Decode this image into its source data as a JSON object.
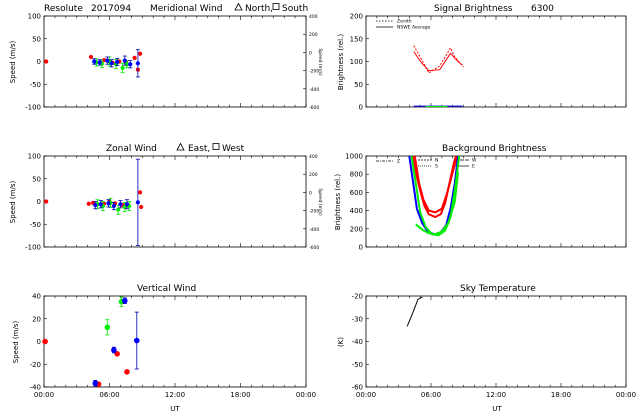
{
  "colors": {
    "red": "#ff0000",
    "green": "#00ee00",
    "blue": "#0000ff",
    "dark_blue": "#0000aa",
    "black": "#000000"
  },
  "panels": {
    "meridional": {
      "title": {
        "site": "Resolute",
        "date": "2017094",
        "name": "Meridional Wind",
        "dir_a": "North,",
        "dir_b": "South"
      },
      "ylabel": "Speed (m/s)",
      "ylabel_right": "Speed (m/s)",
      "yticks": [
        "100",
        "50",
        "0",
        "-50",
        "-100"
      ],
      "yticks_right": [
        "400",
        "200",
        "0",
        "-200",
        "-400",
        "-600"
      ]
    },
    "signal": {
      "title": {
        "name": "Signal Brightness",
        "wavelength": "6300"
      },
      "ylabel": "Brightness (rel.)",
      "yticks": [
        "200",
        "150",
        "100",
        "50",
        "0"
      ],
      "legend": [
        "Zenith",
        "NSWE Average"
      ]
    },
    "zonal": {
      "title": {
        "name": "Zonal Wind",
        "dir_a": "East,",
        "dir_b": "West"
      },
      "ylabel": "Speed (m/s)",
      "ylabel_right": "Speed (m/s)",
      "yticks": [
        "100",
        "50",
        "0",
        "-50",
        "-100"
      ],
      "yticks_right": [
        "400",
        "200",
        "0",
        "-200",
        "-400",
        "-600"
      ]
    },
    "background": {
      "title": {
        "name": "Background Brightness"
      },
      "ylabel": "Brightness (rel.)",
      "yticks": [
        "1000",
        "800",
        "600",
        "400",
        "200",
        "0"
      ],
      "legend": [
        "Z",
        "N",
        "S",
        "W",
        "E"
      ]
    },
    "vertical": {
      "title": {
        "name": "Vertical Wind"
      },
      "ylabel": "Speed (m/s)",
      "yticks": [
        "40",
        "20",
        "0",
        "-20",
        "-40"
      ],
      "xticks": [
        "00:00",
        "06:00",
        "12:00",
        "18:00",
        "00:00"
      ],
      "xlabel": "UT"
    },
    "sky": {
      "title": {
        "name": "Sky Temperature"
      },
      "ylabel": "(K)",
      "yticks": [
        "-20",
        "-30",
        "-40",
        "-50",
        "-60"
      ],
      "xticks": [
        "00:00",
        "06:00",
        "12:00",
        "18:00",
        "00:00"
      ],
      "xlabel": "UT"
    }
  },
  "chart_data": [
    {
      "id": "meridional",
      "type": "scatter",
      "xlim": [
        0,
        24
      ],
      "ylim": [
        -100,
        100
      ],
      "ylim_right": [
        -600,
        400
      ],
      "series": [
        {
          "color": "red",
          "points": [
            [
              0.2,
              0,
              0
            ],
            [
              4.3,
              10,
              0
            ],
            [
              5.5,
              3,
              0
            ],
            [
              6.3,
              -3,
              0
            ],
            [
              6.9,
              0,
              0
            ],
            [
              7.5,
              -2,
              0
            ],
            [
              8.3,
              8,
              0
            ],
            [
              8.6,
              -18,
              0
            ],
            [
              8.8,
              17,
              0
            ]
          ]
        },
        {
          "color": "green",
          "points": [
            [
              4.8,
              -2,
              8
            ],
            [
              5.3,
              -5,
              8
            ],
            [
              6.0,
              0,
              10
            ],
            [
              6.6,
              -6,
              10
            ],
            [
              7.2,
              -14,
              10
            ],
            [
              7.6,
              -6,
              8
            ]
          ]
        },
        {
          "color": "blue",
          "points": [
            [
              4.6,
              0,
              6
            ],
            [
              5.1,
              -2,
              6
            ],
            [
              5.8,
              2,
              8
            ],
            [
              6.2,
              -4,
              8
            ],
            [
              6.7,
              -1,
              8
            ],
            [
              7.4,
              2,
              10
            ],
            [
              7.9,
              -6,
              8
            ],
            [
              8.6,
              -4,
              30
            ]
          ]
        }
      ]
    },
    {
      "id": "signal",
      "type": "line",
      "xlim": [
        0,
        24
      ],
      "ylim": [
        0,
        200
      ],
      "series": [
        {
          "color": "red",
          "dash": true,
          "points": [
            [
              4.4,
              135
            ],
            [
              5.0,
              110
            ],
            [
              5.8,
              75
            ],
            [
              6.8,
              90
            ],
            [
              7.8,
              130
            ],
            [
              8.2,
              110
            ],
            [
              9.0,
              88
            ]
          ]
        },
        {
          "color": "red",
          "dash": false,
          "points": [
            [
              4.4,
              122
            ],
            [
              5.1,
              98
            ],
            [
              5.8,
              80
            ],
            [
              6.8,
              82
            ],
            [
              7.8,
              118
            ],
            [
              8.4,
              102
            ],
            [
              8.9,
              92
            ]
          ]
        },
        {
          "color": "blue",
          "dash": false,
          "points": [
            [
              4.4,
              2
            ],
            [
              6.0,
              2
            ],
            [
              8.0,
              2
            ],
            [
              8.9,
              2
            ]
          ]
        },
        {
          "color": "green",
          "dash": false,
          "points": [
            [
              5.5,
              1
            ],
            [
              6.5,
              1
            ],
            [
              7.5,
              1
            ]
          ]
        }
      ]
    },
    {
      "id": "zonal",
      "type": "scatter",
      "xlim": [
        0,
        24
      ],
      "ylim": [
        -100,
        100
      ],
      "ylim_right": [
        -600,
        400
      ],
      "series": [
        {
          "color": "red",
          "points": [
            [
              0.2,
              0,
              0
            ],
            [
              4.1,
              -5,
              0
            ],
            [
              4.5,
              -3,
              0
            ],
            [
              5.5,
              -5,
              0
            ],
            [
              6.0,
              0,
              0
            ],
            [
              6.5,
              -4,
              0
            ],
            [
              7.2,
              -8,
              0
            ],
            [
              8.8,
              20,
              0
            ],
            [
              8.9,
              -12,
              0
            ]
          ]
        },
        {
          "color": "green",
          "points": [
            [
              4.9,
              -6,
              10
            ],
            [
              5.4,
              -10,
              10
            ],
            [
              6.1,
              -3,
              10
            ],
            [
              6.8,
              -18,
              10
            ],
            [
              7.4,
              -12,
              10
            ],
            [
              7.8,
              -10,
              10
            ]
          ]
        },
        {
          "color": "blue",
          "points": [
            [
              4.7,
              -8,
              8
            ],
            [
              5.2,
              -6,
              8
            ],
            [
              5.9,
              -4,
              8
            ],
            [
              6.4,
              -10,
              8
            ],
            [
              7.0,
              -6,
              8
            ],
            [
              7.6,
              -6,
              10
            ],
            [
              8.6,
              -2,
              95
            ]
          ]
        }
      ]
    },
    {
      "id": "background",
      "type": "line",
      "xlim": [
        0,
        24
      ],
      "ylim": [
        0,
        1000
      ],
      "series": [
        {
          "color": "red",
          "name": "N",
          "points": [
            [
              4.3,
              1000
            ],
            [
              4.6,
              820
            ],
            [
              5.0,
              620
            ],
            [
              5.4,
              450
            ],
            [
              5.8,
              360
            ],
            [
              6.4,
              330
            ],
            [
              6.9,
              360
            ],
            [
              7.3,
              480
            ],
            [
              7.7,
              700
            ],
            [
              8.1,
              920
            ],
            [
              8.3,
              1000
            ]
          ]
        },
        {
          "color": "red",
          "name": "S",
          "points": [
            [
              4.5,
              1000
            ],
            [
              4.9,
              700
            ],
            [
              5.3,
              520
            ],
            [
              5.8,
              400
            ],
            [
              6.4,
              380
            ],
            [
              7.0,
              420
            ],
            [
              7.5,
              600
            ],
            [
              8.0,
              820
            ],
            [
              8.4,
              1000
            ]
          ]
        },
        {
          "color": "blue",
          "name": "Z",
          "points": [
            [
              4.0,
              1000
            ],
            [
              4.3,
              750
            ],
            [
              4.7,
              420
            ],
            [
              5.2,
              260
            ],
            [
              5.7,
              170
            ],
            [
              6.3,
              140
            ],
            [
              6.9,
              160
            ],
            [
              7.4,
              240
            ],
            [
              7.8,
              420
            ],
            [
              8.2,
              700
            ],
            [
              8.5,
              1000
            ]
          ]
        },
        {
          "color": "green",
          "name": "W",
          "points": [
            [
              4.2,
              1000
            ],
            [
              4.6,
              700
            ],
            [
              5.0,
              380
            ],
            [
              5.5,
              220
            ],
            [
              6.1,
              140
            ],
            [
              6.7,
              130
            ],
            [
              7.3,
              180
            ],
            [
              7.8,
              330
            ],
            [
              8.2,
              620
            ],
            [
              8.6,
              1000
            ]
          ]
        },
        {
          "color": "green",
          "name": "E",
          "points": [
            [
              4.6,
              250
            ],
            [
              5.2,
              190
            ],
            [
              5.8,
              150
            ],
            [
              6.4,
              140
            ],
            [
              7.0,
              170
            ],
            [
              7.6,
              260
            ],
            [
              8.2,
              500
            ],
            [
              8.5,
              820
            ]
          ]
        }
      ]
    },
    {
      "id": "vertical",
      "type": "scatter",
      "xlim": [
        0,
        24
      ],
      "ylim": [
        -48,
        48
      ],
      "series": [
        {
          "color": "red",
          "points": [
            [
              0.1,
              0,
              0
            ],
            [
              5.0,
              -45,
              0
            ],
            [
              6.7,
              -13,
              0
            ],
            [
              7.6,
              -32,
              0
            ]
          ]
        },
        {
          "color": "green",
          "points": [
            [
              5.8,
              15,
              8
            ],
            [
              7.1,
              42,
              5
            ]
          ]
        },
        {
          "color": "blue",
          "points": [
            [
              4.7,
              -44,
              3
            ],
            [
              6.4,
              -9,
              3
            ],
            [
              7.4,
              43,
              3
            ],
            [
              8.5,
              1,
              30
            ]
          ]
        }
      ]
    },
    {
      "id": "sky",
      "type": "line",
      "xlim": [
        0,
        24
      ],
      "ylim": [
        -60,
        -18
      ],
      "series": [
        {
          "color": "black",
          "points": [
            [
              3.8,
              -32
            ],
            [
              4.3,
              -26
            ],
            [
              4.8,
              -19.5
            ],
            [
              5.2,
              -18.5
            ]
          ]
        }
      ]
    }
  ]
}
